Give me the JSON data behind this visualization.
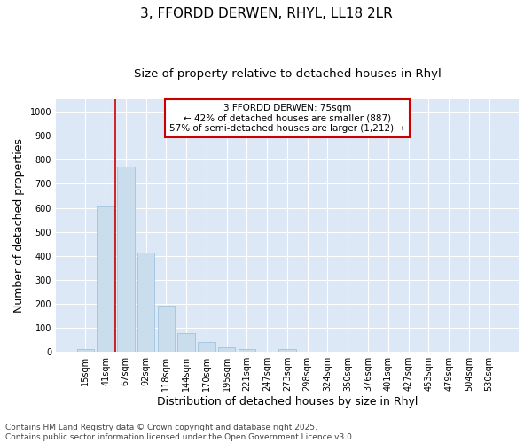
{
  "title": "3, FFORDD DERWEN, RHYL, LL18 2LR",
  "subtitle": "Size of property relative to detached houses in Rhyl",
  "xlabel": "Distribution of detached houses by size in Rhyl",
  "ylabel": "Number of detached properties",
  "footer": "Contains HM Land Registry data © Crown copyright and database right 2025.\nContains public sector information licensed under the Open Government Licence v3.0.",
  "categories": [
    "15sqm",
    "41sqm",
    "67sqm",
    "92sqm",
    "118sqm",
    "144sqm",
    "170sqm",
    "195sqm",
    "221sqm",
    "247sqm",
    "273sqm",
    "298sqm",
    "324sqm",
    "350sqm",
    "376sqm",
    "401sqm",
    "427sqm",
    "453sqm",
    "479sqm",
    "504sqm",
    "530sqm"
  ],
  "values": [
    13,
    605,
    770,
    413,
    192,
    78,
    40,
    18,
    13,
    0,
    13,
    0,
    0,
    0,
    0,
    0,
    0,
    0,
    0,
    0,
    0
  ],
  "bar_color": "#c9dded",
  "bar_edge_color": "#a0c4e0",
  "vline_x": 1.5,
  "vline_color": "#cc0000",
  "annotation_text": "3 FFORDD DERWEN: 75sqm\n← 42% of detached houses are smaller (887)\n57% of semi-detached houses are larger (1,212) →",
  "annotation_box_color": "white",
  "annotation_box_edge": "#cc0000",
  "ylim": [
    0,
    1050
  ],
  "yticks": [
    0,
    100,
    200,
    300,
    400,
    500,
    600,
    700,
    800,
    900,
    1000
  ],
  "fig_bg_color": "#ffffff",
  "plot_bg_color": "#dce8f5",
  "grid_color": "#ffffff",
  "title_fontsize": 11,
  "subtitle_fontsize": 9.5,
  "tick_fontsize": 7,
  "label_fontsize": 9,
  "footer_fontsize": 6.5
}
